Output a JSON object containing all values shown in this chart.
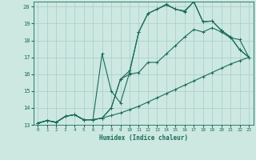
{
  "xlabel": "Humidex (Indice chaleur)",
  "xlim": [
    -0.5,
    23.5
  ],
  "ylim": [
    13,
    20.3
  ],
  "xticks": [
    0,
    1,
    2,
    3,
    4,
    5,
    6,
    7,
    8,
    9,
    10,
    11,
    12,
    13,
    14,
    15,
    16,
    17,
    18,
    19,
    20,
    21,
    22,
    23
  ],
  "yticks": [
    13,
    14,
    15,
    16,
    17,
    18,
    19,
    20
  ],
  "background_color": "#cce8e0",
  "grid_color": "#aacccc",
  "line_color": "#1a6b5a",
  "lines": [
    {
      "x": [
        0,
        1,
        2,
        3,
        4,
        5,
        6,
        7,
        8,
        9,
        10,
        11,
        12,
        13,
        14,
        15,
        16,
        17,
        18,
        19,
        20,
        21,
        22,
        23
      ],
      "y": [
        13.1,
        13.25,
        13.15,
        13.5,
        13.6,
        13.3,
        13.3,
        13.4,
        13.55,
        13.7,
        13.9,
        14.1,
        14.35,
        14.6,
        14.85,
        15.1,
        15.35,
        15.6,
        15.85,
        16.1,
        16.35,
        16.6,
        16.8,
        17.0
      ]
    },
    {
      "x": [
        0,
        1,
        2,
        3,
        4,
        5,
        6,
        7,
        8,
        9,
        10,
        11,
        12,
        13,
        14,
        15,
        16,
        17,
        18,
        19,
        20,
        21,
        22,
        23
      ],
      "y": [
        13.1,
        13.25,
        13.15,
        13.5,
        13.6,
        13.3,
        13.3,
        13.4,
        14.0,
        15.7,
        16.0,
        16.1,
        16.7,
        16.7,
        17.2,
        17.7,
        18.2,
        18.65,
        18.5,
        18.75,
        18.5,
        18.15,
        18.05,
        17.0
      ]
    },
    {
      "x": [
        0,
        1,
        2,
        3,
        4,
        5,
        6,
        7,
        8,
        9,
        10,
        11,
        12,
        13,
        14,
        15,
        16,
        17,
        18,
        19,
        20,
        21,
        22,
        23
      ],
      "y": [
        13.1,
        13.25,
        13.15,
        13.5,
        13.6,
        13.3,
        13.3,
        17.2,
        15.0,
        14.3,
        16.1,
        18.5,
        19.6,
        19.85,
        20.1,
        19.85,
        19.7,
        20.3,
        19.1,
        19.15,
        18.6,
        18.2,
        17.45,
        17.0
      ]
    },
    {
      "x": [
        0,
        1,
        2,
        3,
        4,
        5,
        6,
        7,
        8,
        9,
        10,
        11,
        12,
        13,
        14,
        15,
        16,
        17,
        18,
        19,
        20,
        21,
        22,
        23
      ],
      "y": [
        13.1,
        13.25,
        13.15,
        13.5,
        13.6,
        13.3,
        13.3,
        13.4,
        14.0,
        15.7,
        16.2,
        18.5,
        19.6,
        19.85,
        20.15,
        19.85,
        19.75,
        20.3,
        19.1,
        19.15,
        18.6,
        18.2,
        17.45,
        17.0
      ]
    }
  ]
}
